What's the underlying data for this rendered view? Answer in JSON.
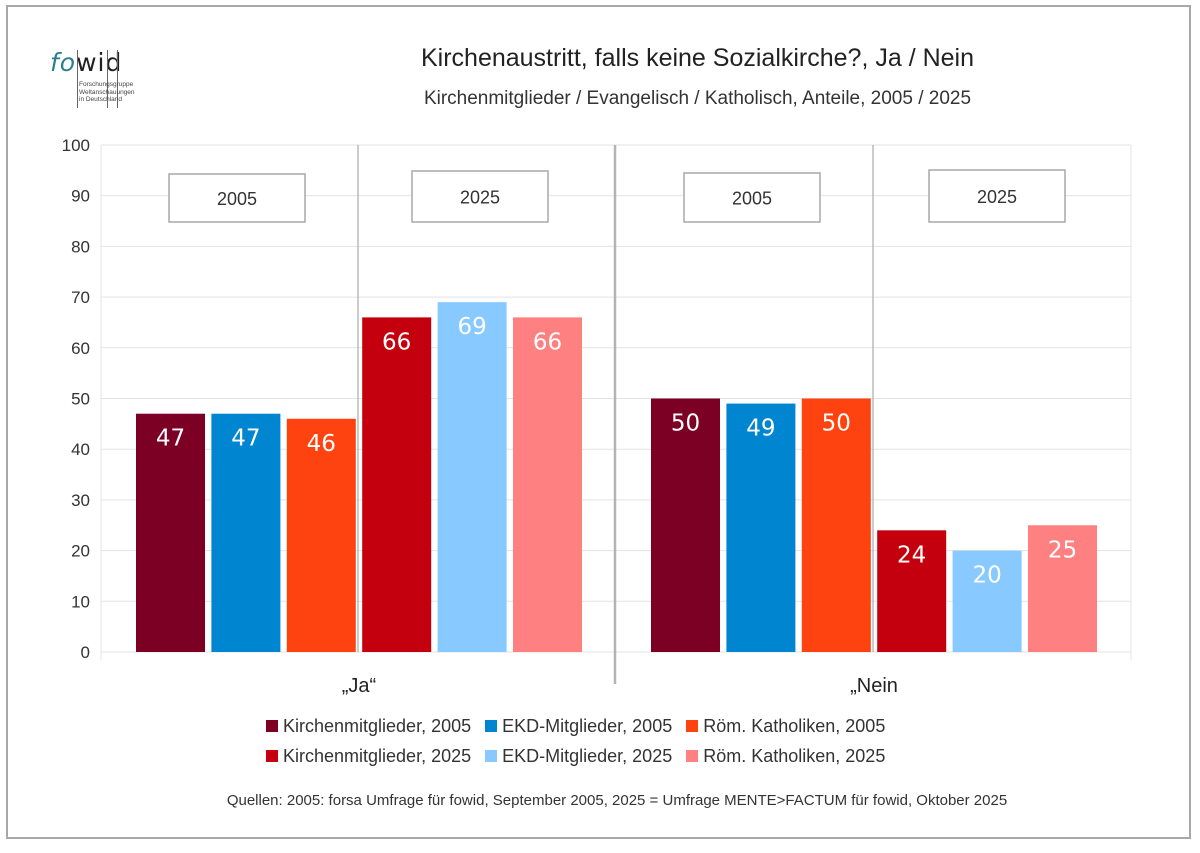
{
  "logo": {
    "text_fo": "fo",
    "text_wid": "wid",
    "subtitle_lines": [
      "Forschungsgruppe",
      "Weltanschauungen",
      "in Deutschland"
    ]
  },
  "header": {
    "title": "Kirchenaustritt, falls keine Sozialkirche?, Ja / Nein",
    "subtitle": "Kirchenmitglieder / Evangelisch / Katholisch, Anteile, 2005 / 2025"
  },
  "source": "Quellen: 2005: forsa Umfrage für fowid, September 2005, 2025 = Umfrage MENTE>FACTUM für fowid, Oktober 2025",
  "chart_data": {
    "type": "bar",
    "title": "Kirchenaustritt, falls keine Sozialkirche?, Ja / Nein",
    "subtitle": "Kirchenmitglieder / Evangelisch / Katholisch, Anteile, 2005 / 2025",
    "xlabel": "",
    "ylabel": "",
    "ylim": [
      0,
      100
    ],
    "yticks": [
      0,
      10,
      20,
      30,
      40,
      50,
      60,
      70,
      80,
      90,
      100
    ],
    "grid": true,
    "categories": [
      "„Ja“",
      "„Nein"
    ],
    "year_boxes": [
      [
        "2005",
        "2025"
      ],
      [
        "2005",
        "2025"
      ]
    ],
    "legend_position": "bottom",
    "series": [
      {
        "name": "Kirchenmitglieder, 2005",
        "color": "#7b0024",
        "values": [
          47,
          50
        ]
      },
      {
        "name": "EKD-Mitglieder, 2005",
        "color": "#0085d0",
        "values": [
          47,
          49
        ]
      },
      {
        "name": "Röm. Katholiken, 2005",
        "color": "#ff4310",
        "values": [
          46,
          50
        ]
      },
      {
        "name": "Kirchenmitglieder, 2025",
        "color": "#c5000e",
        "values": [
          66,
          24
        ]
      },
      {
        "name": "EKD-Mitglieder, 2025",
        "color": "#88c9ff",
        "values": [
          69,
          20
        ]
      },
      {
        "name": "Röm. Katholiken, 2025",
        "color": "#ff8080",
        "values": [
          66,
          25
        ]
      }
    ]
  }
}
